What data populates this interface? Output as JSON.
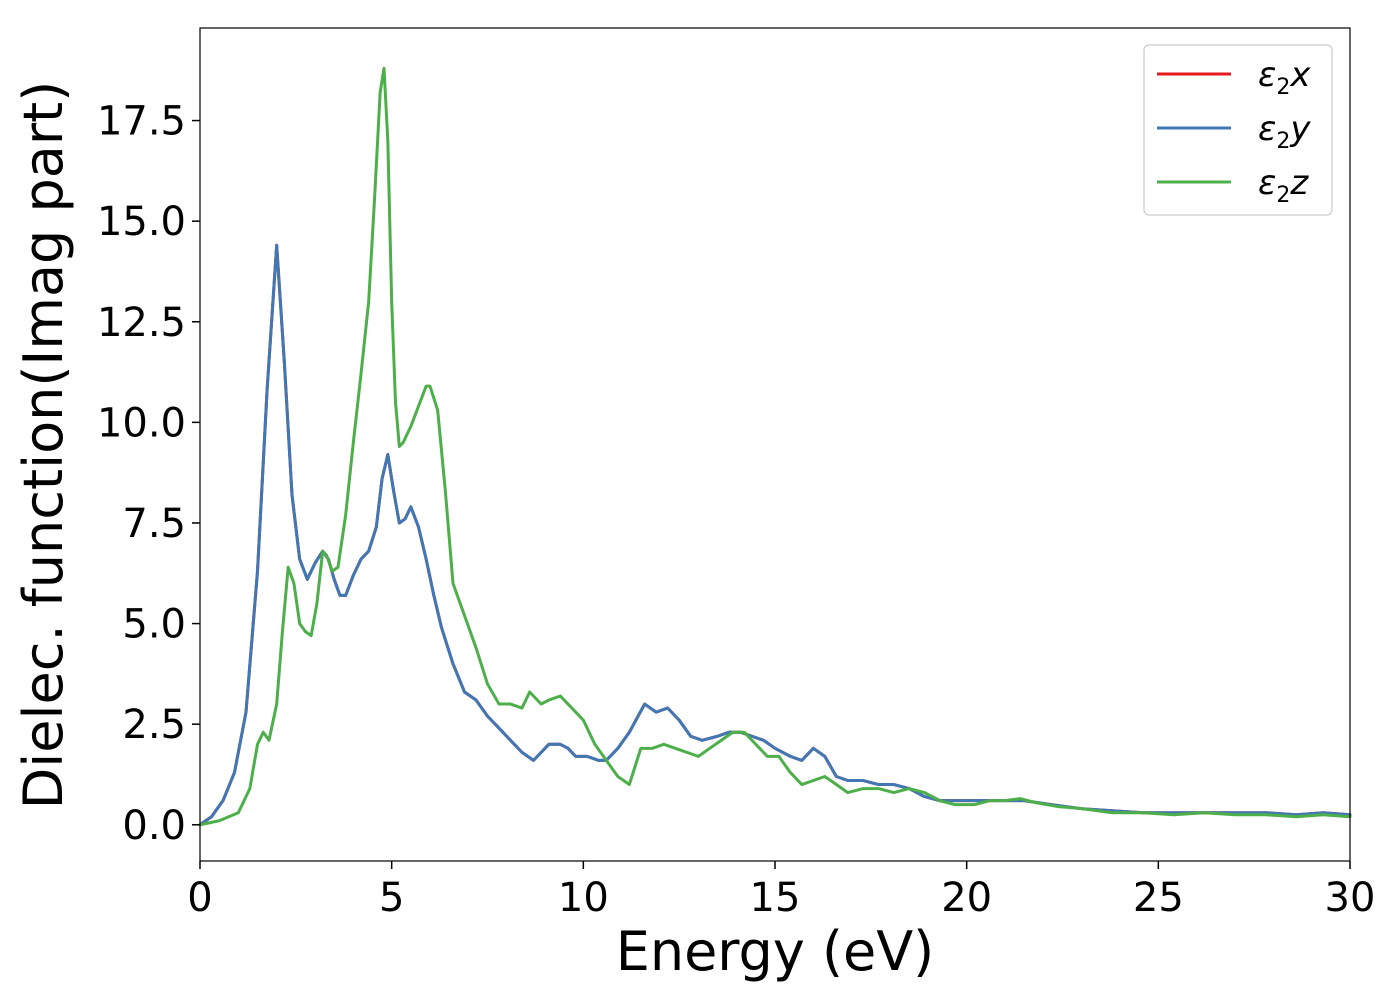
{
  "chart_data": {
    "type": "line",
    "title": "",
    "xlabel": "Energy (eV)",
    "ylabel": "Dielec. function(Imag part)",
    "xlim": [
      0,
      30
    ],
    "ylim": [
      -0.9,
      19.8
    ],
    "xticks": [
      0,
      5,
      10,
      15,
      20,
      25,
      30
    ],
    "xtick_labels": [
      "0",
      "5",
      "10",
      "15",
      "20",
      "25",
      "30"
    ],
    "yticks": [
      0.0,
      2.5,
      5.0,
      7.5,
      10.0,
      12.5,
      15.0,
      17.5
    ],
    "ytick_labels": [
      "0.0",
      "2.5",
      "5.0",
      "7.5",
      "10.0",
      "12.5",
      "15.0",
      "17.5"
    ],
    "grid": false,
    "legend_position": "top-right",
    "series": [
      {
        "name": "ε2x",
        "label_base": "ε",
        "label_sub": "2",
        "label_suffix": "x",
        "color": "#e41a1c",
        "x": [
          0,
          0.3,
          0.6,
          0.9,
          1.2,
          1.5,
          1.75,
          2.0,
          2.2,
          2.4,
          2.6,
          2.8,
          3.0,
          3.2,
          3.35,
          3.5,
          3.65,
          3.8,
          4.0,
          4.2,
          4.4,
          4.6,
          4.75,
          4.9,
          5.05,
          5.2,
          5.35,
          5.5,
          5.7,
          5.9,
          6.1,
          6.3,
          6.6,
          6.9,
          7.2,
          7.5,
          7.8,
          8.1,
          8.4,
          8.7,
          8.9,
          9.1,
          9.4,
          9.6,
          9.8,
          10.1,
          10.4,
          10.6,
          10.9,
          11.2,
          11.6,
          11.9,
          12.2,
          12.5,
          12.8,
          13.1,
          13.5,
          13.8,
          14.1,
          14.4,
          14.7,
          15.0,
          15.4,
          15.7,
          16.0,
          16.3,
          16.6,
          16.9,
          17.3,
          17.7,
          18.1,
          18.5,
          18.9,
          19.3,
          19.7,
          20.2,
          20.8,
          21.5,
          22.2,
          23.0,
          23.8,
          24.6,
          25.4,
          26.2,
          27.0,
          27.8,
          28.6,
          29.3,
          30.0
        ],
        "y": [
          0.0,
          0.2,
          0.6,
          1.3,
          2.8,
          6.3,
          10.8,
          14.4,
          11.5,
          8.2,
          6.6,
          6.1,
          6.5,
          6.8,
          6.6,
          6.1,
          5.7,
          5.7,
          6.2,
          6.6,
          6.8,
          7.4,
          8.6,
          9.2,
          8.3,
          7.5,
          7.6,
          7.9,
          7.4,
          6.6,
          5.7,
          4.9,
          4.0,
          3.3,
          3.1,
          2.7,
          2.4,
          2.1,
          1.8,
          1.6,
          1.8,
          2.0,
          2.0,
          1.9,
          1.7,
          1.7,
          1.6,
          1.6,
          1.9,
          2.3,
          3.0,
          2.8,
          2.9,
          2.6,
          2.2,
          2.1,
          2.2,
          2.3,
          2.3,
          2.2,
          2.1,
          1.9,
          1.7,
          1.6,
          1.9,
          1.7,
          1.2,
          1.1,
          1.1,
          1.0,
          1.0,
          0.9,
          0.7,
          0.6,
          0.6,
          0.6,
          0.6,
          0.6,
          0.5,
          0.4,
          0.35,
          0.3,
          0.3,
          0.3,
          0.3,
          0.3,
          0.25,
          0.3,
          0.25
        ]
      },
      {
        "name": "ε2y",
        "label_base": "ε",
        "label_sub": "2",
        "label_suffix": "y",
        "color": "#3f78b4",
        "x": [
          0,
          0.3,
          0.6,
          0.9,
          1.2,
          1.5,
          1.75,
          2.0,
          2.2,
          2.4,
          2.6,
          2.8,
          3.0,
          3.2,
          3.35,
          3.5,
          3.65,
          3.8,
          4.0,
          4.2,
          4.4,
          4.6,
          4.75,
          4.9,
          5.05,
          5.2,
          5.35,
          5.5,
          5.7,
          5.9,
          6.1,
          6.3,
          6.6,
          6.9,
          7.2,
          7.5,
          7.8,
          8.1,
          8.4,
          8.7,
          8.9,
          9.1,
          9.4,
          9.6,
          9.8,
          10.1,
          10.4,
          10.6,
          10.9,
          11.2,
          11.6,
          11.9,
          12.2,
          12.5,
          12.8,
          13.1,
          13.5,
          13.8,
          14.1,
          14.4,
          14.7,
          15.0,
          15.4,
          15.7,
          16.0,
          16.3,
          16.6,
          16.9,
          17.3,
          17.7,
          18.1,
          18.5,
          18.9,
          19.3,
          19.7,
          20.2,
          20.8,
          21.5,
          22.2,
          23.0,
          23.8,
          24.6,
          25.4,
          26.2,
          27.0,
          27.8,
          28.6,
          29.3,
          30.0
        ],
        "y": [
          0.0,
          0.2,
          0.6,
          1.3,
          2.8,
          6.3,
          10.8,
          14.4,
          11.5,
          8.2,
          6.6,
          6.1,
          6.5,
          6.8,
          6.6,
          6.1,
          5.7,
          5.7,
          6.2,
          6.6,
          6.8,
          7.4,
          8.6,
          9.2,
          8.3,
          7.5,
          7.6,
          7.9,
          7.4,
          6.6,
          5.7,
          4.9,
          4.0,
          3.3,
          3.1,
          2.7,
          2.4,
          2.1,
          1.8,
          1.6,
          1.8,
          2.0,
          2.0,
          1.9,
          1.7,
          1.7,
          1.6,
          1.6,
          1.9,
          2.3,
          3.0,
          2.8,
          2.9,
          2.6,
          2.2,
          2.1,
          2.2,
          2.3,
          2.3,
          2.2,
          2.1,
          1.9,
          1.7,
          1.6,
          1.9,
          1.7,
          1.2,
          1.1,
          1.1,
          1.0,
          1.0,
          0.9,
          0.7,
          0.6,
          0.6,
          0.6,
          0.6,
          0.6,
          0.5,
          0.4,
          0.35,
          0.3,
          0.3,
          0.3,
          0.3,
          0.3,
          0.25,
          0.3,
          0.25
        ]
      },
      {
        "name": "ε2z",
        "label_base": "ε",
        "label_sub": "2",
        "label_suffix": "z",
        "color": "#4daf4a",
        "x": [
          0,
          0.5,
          1.0,
          1.3,
          1.5,
          1.65,
          1.8,
          2.0,
          2.15,
          2.3,
          2.45,
          2.6,
          2.75,
          2.9,
          3.05,
          3.2,
          3.3,
          3.45,
          3.6,
          3.8,
          4.0,
          4.2,
          4.4,
          4.55,
          4.7,
          4.8,
          4.9,
          5.0,
          5.1,
          5.2,
          5.3,
          5.5,
          5.7,
          5.9,
          6.0,
          6.2,
          6.4,
          6.6,
          6.9,
          7.2,
          7.5,
          7.8,
          8.1,
          8.4,
          8.6,
          8.9,
          9.1,
          9.4,
          9.7,
          10.0,
          10.3,
          10.6,
          10.9,
          11.2,
          11.5,
          11.8,
          12.1,
          12.4,
          12.7,
          13.0,
          13.3,
          13.6,
          13.9,
          14.2,
          14.5,
          14.8,
          15.1,
          15.4,
          15.7,
          16.0,
          16.3,
          16.6,
          16.9,
          17.3,
          17.7,
          18.1,
          18.5,
          18.9,
          19.3,
          19.7,
          20.2,
          20.6,
          21.0,
          21.4,
          21.8,
          22.4,
          23.0,
          23.8,
          24.6,
          25.4,
          26.2,
          27.0,
          27.8,
          28.6,
          29.3,
          30.0
        ],
        "y": [
          0.0,
          0.1,
          0.3,
          0.9,
          2.0,
          2.3,
          2.1,
          3.0,
          4.8,
          6.4,
          6.0,
          5.0,
          4.8,
          4.7,
          5.5,
          6.8,
          6.7,
          6.3,
          6.4,
          7.7,
          9.5,
          11.2,
          13.0,
          15.5,
          18.2,
          18.8,
          17.0,
          13.0,
          10.5,
          9.4,
          9.5,
          9.9,
          10.4,
          10.9,
          10.9,
          10.3,
          8.3,
          6.0,
          5.2,
          4.4,
          3.5,
          3.0,
          3.0,
          2.9,
          3.3,
          3.0,
          3.1,
          3.2,
          2.9,
          2.6,
          2.0,
          1.6,
          1.2,
          1.0,
          1.9,
          1.9,
          2.0,
          1.9,
          1.8,
          1.7,
          1.9,
          2.1,
          2.3,
          2.3,
          2.0,
          1.7,
          1.7,
          1.3,
          1.0,
          1.1,
          1.2,
          1.0,
          0.8,
          0.9,
          0.9,
          0.8,
          0.9,
          0.8,
          0.6,
          0.5,
          0.5,
          0.6,
          0.6,
          0.65,
          0.55,
          0.45,
          0.4,
          0.3,
          0.3,
          0.25,
          0.3,
          0.25,
          0.25,
          0.2,
          0.25,
          0.2
        ]
      }
    ]
  }
}
